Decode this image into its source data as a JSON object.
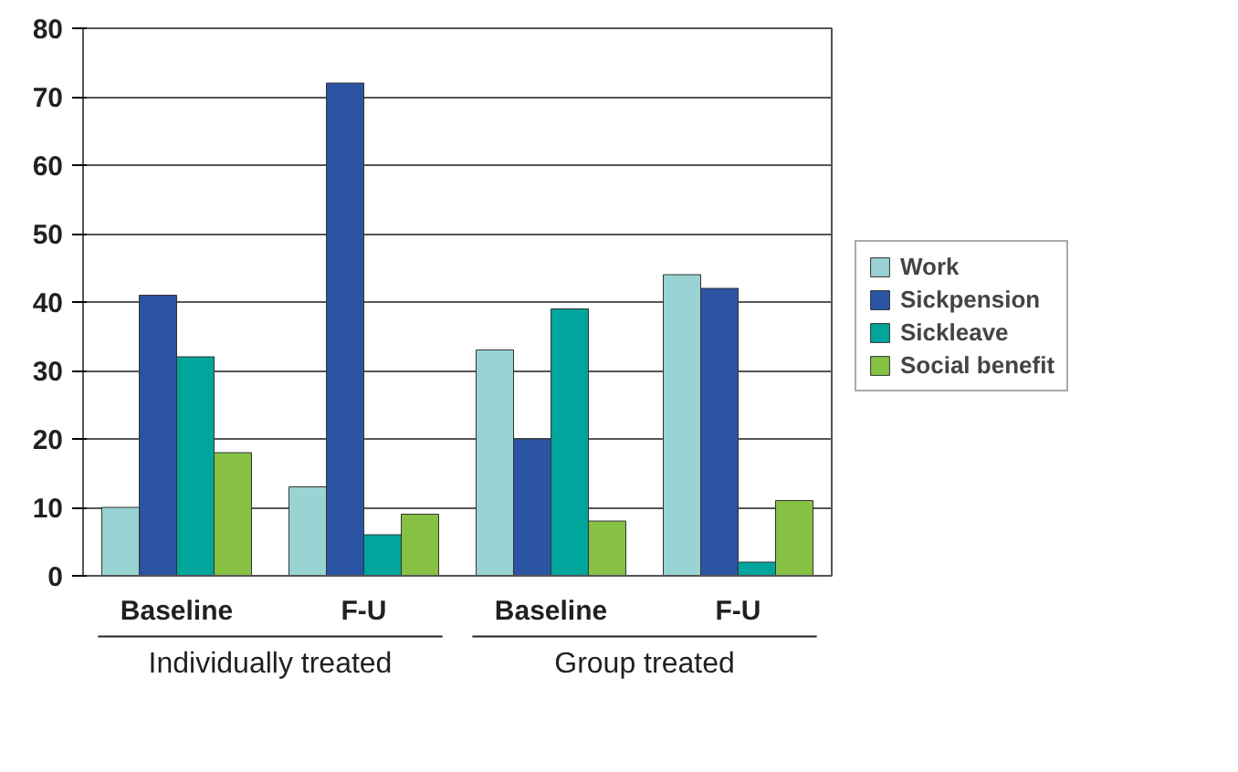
{
  "chart_data": {
    "type": "bar",
    "categories": [
      "Baseline",
      "F-U",
      "Baseline",
      "F-U"
    ],
    "series": [
      {
        "name": "Work",
        "color": "#99d3d3",
        "values": [
          10,
          13,
          33,
          44
        ]
      },
      {
        "name": "Sickpension",
        "color": "#2b54a3",
        "values": [
          41,
          72,
          20,
          42
        ]
      },
      {
        "name": "Sickleave",
        "color": "#00a69b",
        "values": [
          32,
          6,
          39,
          2
        ]
      },
      {
        "name": "Social benefit",
        "color": "#86c143",
        "values": [
          18,
          9,
          8,
          11
        ]
      }
    ],
    "annotations": [
      "Individually treated",
      "Group treated"
    ],
    "ylim": [
      0,
      80
    ],
    "yticks": [
      0,
      10,
      20,
      30,
      40,
      50,
      60,
      70,
      80
    ],
    "grid": "y",
    "legend": "right"
  }
}
